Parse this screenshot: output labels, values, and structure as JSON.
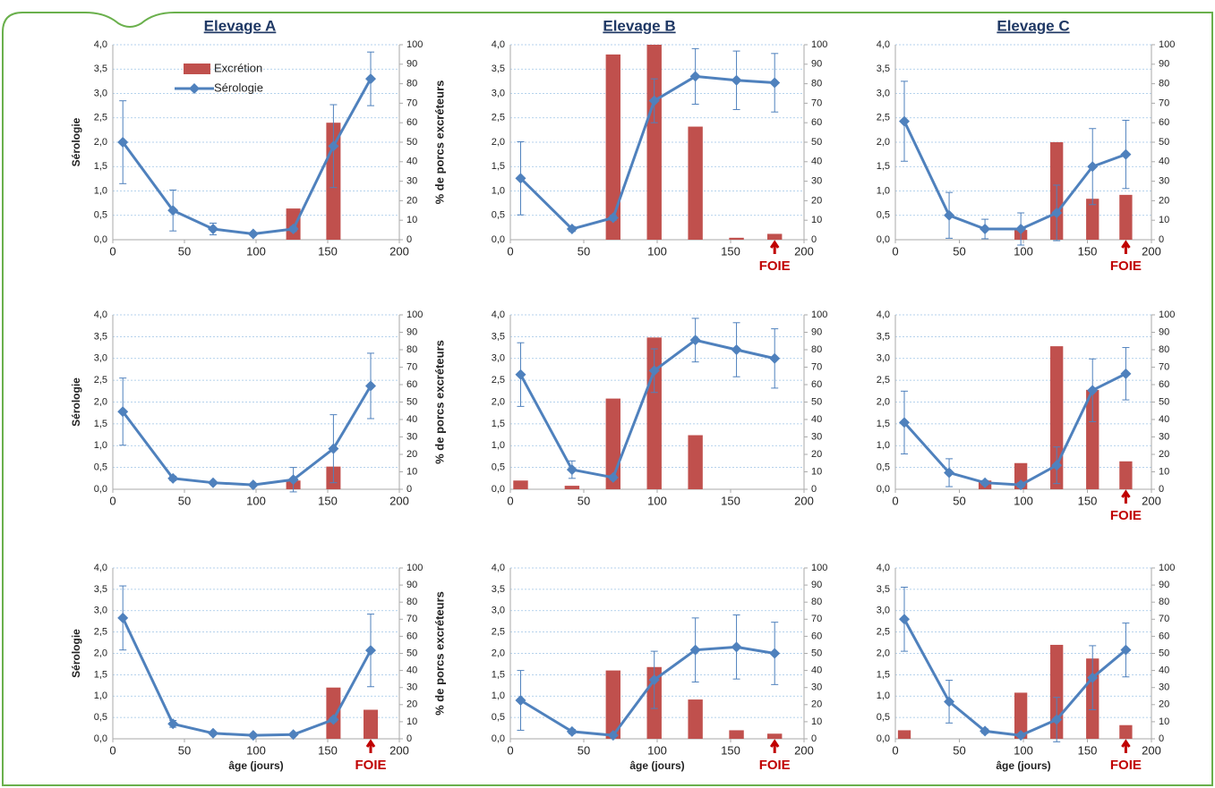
{
  "column_titles": [
    "Elevage A",
    "Elevage B",
    "Elevage C"
  ],
  "chart_data": [
    {
      "type": "combo",
      "x": [
        7,
        42,
        70,
        98,
        126,
        154,
        180
      ],
      "legend": "upper left",
      "series": [
        {
          "name": "Excrétion",
          "type": "bar",
          "axis": "y2",
          "color": "#c0504d",
          "values": [
            null,
            null,
            null,
            null,
            16,
            60,
            null
          ]
        },
        {
          "name": "Sérologie",
          "type": "line",
          "color": "#4f81bd",
          "values": [
            2.0,
            0.6,
            0.22,
            0.12,
            0.22,
            1.92,
            3.3
          ],
          "errors": [
            0.85,
            0.42,
            0.12,
            0.03,
            0.05,
            0.85,
            0.55
          ]
        }
      ],
      "ylabel": "Sérologie",
      "y2label": "% de porcs excréteurs",
      "xlim": [
        0,
        200
      ],
      "xticks": [
        0,
        50,
        100,
        150,
        200
      ],
      "ylim": [
        0,
        4
      ],
      "yticks": [
        {
          "value": 0,
          "label": "0,0"
        },
        {
          "value": 0.5,
          "label": "0,5"
        },
        {
          "value": 1,
          "label": "1,0"
        },
        {
          "value": 1.5,
          "label": "1,5"
        },
        {
          "value": 2,
          "label": "2,0"
        },
        {
          "value": 2.5,
          "label": "2,5"
        },
        {
          "value": 3,
          "label": "3,0"
        },
        {
          "value": 3.5,
          "label": "3,5"
        },
        {
          "value": 4,
          "label": "4,0"
        }
      ],
      "y2lim": [
        0,
        100
      ],
      "y2ticks": [
        0,
        10,
        20,
        30,
        40,
        50,
        60,
        70,
        80,
        90,
        100
      ],
      "grid": true
    },
    {
      "type": "combo",
      "x": [
        7,
        42,
        70,
        98,
        126,
        154,
        180
      ],
      "series": [
        {
          "type": "bar",
          "axis": "y2",
          "color": "#c0504d",
          "values": [
            null,
            null,
            95,
            100,
            58,
            1,
            3
          ]
        },
        {
          "type": "line",
          "color": "#4f81bd",
          "values": [
            1.26,
            0.22,
            0.45,
            2.85,
            3.35,
            3.27,
            3.22
          ],
          "errors": [
            0.75,
            0.05,
            0.05,
            0.45,
            0.57,
            0.6,
            0.6
          ]
        }
      ],
      "annotation": {
        "text": "FOIE",
        "x": 180
      },
      "xlim": [
        0,
        200
      ],
      "xticks": [
        0,
        50,
        100,
        150,
        200
      ],
      "ylim": [
        0,
        4
      ],
      "yticks": [
        {
          "value": 0,
          "label": "0,0"
        },
        {
          "value": 0.5,
          "label": "0,5"
        },
        {
          "value": 1,
          "label": "1,0"
        },
        {
          "value": 1.5,
          "label": "1,5"
        },
        {
          "value": 2,
          "label": "2,0"
        },
        {
          "value": 2.5,
          "label": "2,5"
        },
        {
          "value": 3,
          "label": "3,0"
        },
        {
          "value": 3.5,
          "label": "3,5"
        },
        {
          "value": 4,
          "label": "4,0"
        }
      ],
      "y2lim": [
        0,
        100
      ],
      "y2ticks": [
        0,
        10,
        20,
        30,
        40,
        50,
        60,
        70,
        80,
        90,
        100
      ],
      "grid": true
    },
    {
      "type": "combo",
      "x": [
        7,
        42,
        70,
        98,
        126,
        154,
        180
      ],
      "series": [
        {
          "type": "bar",
          "axis": "y2",
          "color": "#c0504d",
          "values": [
            null,
            null,
            null,
            5,
            50,
            21,
            23
          ]
        },
        {
          "type": "line",
          "color": "#4f81bd",
          "values": [
            2.43,
            0.5,
            0.22,
            0.22,
            0.55,
            1.5,
            1.75
          ],
          "errors": [
            0.82,
            0.47,
            0.2,
            0.33,
            0.57,
            0.78,
            0.7
          ]
        }
      ],
      "annotation": {
        "text": "FOIE",
        "x": 180
      },
      "xlim": [
        0,
        200
      ],
      "xticks": [
        0,
        50,
        100,
        150,
        200
      ],
      "ylim": [
        0,
        4
      ],
      "yticks": [
        {
          "value": 0,
          "label": "0,0"
        },
        {
          "value": 0.5,
          "label": "0,5"
        },
        {
          "value": 1,
          "label": "1,0"
        },
        {
          "value": 1.5,
          "label": "1,5"
        },
        {
          "value": 2,
          "label": "2,0"
        },
        {
          "value": 2.5,
          "label": "2,5"
        },
        {
          "value": 3,
          "label": "3,0"
        },
        {
          "value": 3.5,
          "label": "3,5"
        },
        {
          "value": 4,
          "label": "4,0"
        }
      ],
      "y2lim": [
        0,
        100
      ],
      "y2ticks": [
        0,
        10,
        20,
        30,
        40,
        50,
        60,
        70,
        80,
        90,
        100
      ],
      "grid": true
    },
    {
      "type": "combo",
      "x": [
        7,
        42,
        70,
        98,
        126,
        154,
        180
      ],
      "series": [
        {
          "type": "bar",
          "axis": "y2",
          "color": "#c0504d",
          "values": [
            null,
            null,
            null,
            null,
            5,
            13,
            null
          ]
        },
        {
          "type": "line",
          "color": "#4f81bd",
          "values": [
            1.78,
            0.25,
            0.15,
            0.1,
            0.22,
            0.93,
            2.37
          ],
          "errors": [
            0.77,
            0.05,
            0.03,
            0.02,
            0.28,
            0.78,
            0.75
          ]
        }
      ],
      "ylabel": "Sérologie",
      "y2label": "% de porcs excréteurs",
      "xlim": [
        0,
        200
      ],
      "xticks": [
        0,
        50,
        100,
        150,
        200
      ],
      "ylim": [
        0,
        4
      ],
      "yticks": [
        {
          "value": 0,
          "label": "0,0"
        },
        {
          "value": 0.5,
          "label": "0,5"
        },
        {
          "value": 1,
          "label": "1,0"
        },
        {
          "value": 1.5,
          "label": "1,5"
        },
        {
          "value": 2,
          "label": "2,0"
        },
        {
          "value": 2.5,
          "label": "2,5"
        },
        {
          "value": 3,
          "label": "3,0"
        },
        {
          "value": 3.5,
          "label": "3,5"
        },
        {
          "value": 4,
          "label": "4,0"
        }
      ],
      "y2lim": [
        0,
        100
      ],
      "y2ticks": [
        0,
        10,
        20,
        30,
        40,
        50,
        60,
        70,
        80,
        90,
        100
      ],
      "grid": true
    },
    {
      "type": "combo",
      "x": [
        7,
        42,
        70,
        98,
        126,
        154,
        180
      ],
      "series": [
        {
          "type": "bar",
          "axis": "y2",
          "color": "#c0504d",
          "values": [
            5,
            2,
            52,
            87,
            31,
            null,
            null
          ]
        },
        {
          "type": "line",
          "color": "#4f81bd",
          "values": [
            2.63,
            0.45,
            0.27,
            2.72,
            3.42,
            3.2,
            3.0
          ],
          "errors": [
            0.73,
            0.2,
            0.05,
            0.5,
            0.5,
            0.62,
            0.68
          ]
        }
      ],
      "xlim": [
        0,
        200
      ],
      "xticks": [
        0,
        50,
        100,
        150,
        200
      ],
      "ylim": [
        0,
        4
      ],
      "yticks": [
        {
          "value": 0,
          "label": "0,0"
        },
        {
          "value": 0.5,
          "label": "0,5"
        },
        {
          "value": 1,
          "label": "1,0"
        },
        {
          "value": 1.5,
          "label": "1,5"
        },
        {
          "value": 2,
          "label": "2,0"
        },
        {
          "value": 2.5,
          "label": "2,5"
        },
        {
          "value": 3,
          "label": "3,0"
        },
        {
          "value": 3.5,
          "label": "3,5"
        },
        {
          "value": 4,
          "label": "4,0"
        }
      ],
      "y2lim": [
        0,
        100
      ],
      "y2ticks": [
        0,
        10,
        20,
        30,
        40,
        50,
        60,
        70,
        80,
        90,
        100
      ],
      "grid": true
    },
    {
      "type": "combo",
      "x": [
        7,
        42,
        70,
        98,
        126,
        154,
        180
      ],
      "series": [
        {
          "type": "bar",
          "axis": "y2",
          "color": "#c0504d",
          "values": [
            null,
            null,
            5,
            15,
            82,
            57,
            16
          ]
        },
        {
          "type": "line",
          "color": "#4f81bd",
          "values": [
            1.53,
            0.38,
            0.15,
            0.1,
            0.55,
            2.27,
            2.65
          ],
          "errors": [
            0.72,
            0.32,
            0.05,
            0.05,
            0.42,
            0.72,
            0.6
          ]
        }
      ],
      "annotation": {
        "text": "FOIE",
        "x": 180
      },
      "xlim": [
        0,
        200
      ],
      "xticks": [
        0,
        50,
        100,
        150,
        200
      ],
      "ylim": [
        0,
        4
      ],
      "yticks": [
        {
          "value": 0,
          "label": "0,0"
        },
        {
          "value": 0.5,
          "label": "0,5"
        },
        {
          "value": 1,
          "label": "1,0"
        },
        {
          "value": 1.5,
          "label": "1,5"
        },
        {
          "value": 2,
          "label": "2,0"
        },
        {
          "value": 2.5,
          "label": "2,5"
        },
        {
          "value": 3,
          "label": "3,0"
        },
        {
          "value": 3.5,
          "label": "3,5"
        },
        {
          "value": 4,
          "label": "4,0"
        }
      ],
      "y2lim": [
        0,
        100
      ],
      "y2ticks": [
        0,
        10,
        20,
        30,
        40,
        50,
        60,
        70,
        80,
        90,
        100
      ],
      "grid": true
    },
    {
      "type": "combo",
      "x": [
        7,
        42,
        70,
        98,
        126,
        154,
        180
      ],
      "series": [
        {
          "type": "bar",
          "axis": "y2",
          "color": "#c0504d",
          "values": [
            null,
            null,
            null,
            null,
            null,
            30,
            17
          ]
        },
        {
          "type": "line",
          "color": "#4f81bd",
          "values": [
            2.83,
            0.35,
            0.13,
            0.08,
            0.1,
            0.45,
            2.07
          ],
          "errors": [
            0.75,
            0.08,
            0.03,
            0.02,
            0.02,
            0.05,
            0.85
          ]
        }
      ],
      "ylabel": "Sérologie",
      "y2label": "% de porcs excréteurs",
      "xlabel": "âge (jours)",
      "annotation": {
        "text": "FOIE",
        "x": 180
      },
      "xlim": [
        0,
        200
      ],
      "xticks": [
        0,
        50,
        100,
        150,
        200
      ],
      "ylim": [
        0,
        4
      ],
      "yticks": [
        {
          "value": 0,
          "label": "0,0"
        },
        {
          "value": 0.5,
          "label": "0,5"
        },
        {
          "value": 1,
          "label": "1,0"
        },
        {
          "value": 1.5,
          "label": "1,5"
        },
        {
          "value": 2,
          "label": "2,0"
        },
        {
          "value": 2.5,
          "label": "2,5"
        },
        {
          "value": 3,
          "label": "3,0"
        },
        {
          "value": 3.5,
          "label": "3,5"
        },
        {
          "value": 4,
          "label": "4,0"
        }
      ],
      "y2lim": [
        0,
        100
      ],
      "y2ticks": [
        0,
        10,
        20,
        30,
        40,
        50,
        60,
        70,
        80,
        90,
        100
      ],
      "grid": true
    },
    {
      "type": "combo",
      "x": [
        7,
        42,
        70,
        98,
        126,
        154,
        180
      ],
      "series": [
        {
          "type": "bar",
          "axis": "y2",
          "color": "#c0504d",
          "values": [
            null,
            null,
            40,
            42,
            23,
            5,
            3
          ]
        },
        {
          "type": "line",
          "color": "#4f81bd",
          "values": [
            0.9,
            0.17,
            0.08,
            1.38,
            2.08,
            2.15,
            2.0
          ],
          "errors": [
            0.7,
            0.05,
            0.02,
            0.67,
            0.75,
            0.75,
            0.73
          ]
        }
      ],
      "xlabel": "âge (jours)",
      "annotation": {
        "text": "FOIE",
        "x": 180
      },
      "xlim": [
        0,
        200
      ],
      "xticks": [
        0,
        50,
        100,
        150,
        200
      ],
      "ylim": [
        0,
        4
      ],
      "yticks": [
        {
          "value": 0,
          "label": "0,0"
        },
        {
          "value": 0.5,
          "label": "0,5"
        },
        {
          "value": 1,
          "label": "1,0"
        },
        {
          "value": 1.5,
          "label": "1,5"
        },
        {
          "value": 2,
          "label": "2,0"
        },
        {
          "value": 2.5,
          "label": "2,5"
        },
        {
          "value": 3,
          "label": "3,0"
        },
        {
          "value": 3.5,
          "label": "3,5"
        },
        {
          "value": 4,
          "label": "4,0"
        }
      ],
      "y2lim": [
        0,
        100
      ],
      "y2ticks": [
        0,
        10,
        20,
        30,
        40,
        50,
        60,
        70,
        80,
        90,
        100
      ],
      "grid": true
    },
    {
      "type": "combo",
      "x": [
        7,
        42,
        70,
        98,
        126,
        154,
        180
      ],
      "series": [
        {
          "type": "bar",
          "axis": "y2",
          "color": "#c0504d",
          "values": [
            5,
            null,
            null,
            27,
            55,
            47,
            8
          ]
        },
        {
          "type": "line",
          "color": "#4f81bd",
          "values": [
            2.8,
            0.87,
            0.18,
            0.08,
            0.45,
            1.43,
            2.08
          ],
          "errors": [
            0.75,
            0.5,
            0.05,
            0.03,
            0.52,
            0.75,
            0.63
          ]
        }
      ],
      "xlabel": "âge (jours)",
      "annotation": {
        "text": "FOIE",
        "x": 180
      },
      "xlim": [
        0,
        200
      ],
      "xticks": [
        0,
        50,
        100,
        150,
        200
      ],
      "ylim": [
        0,
        4
      ],
      "yticks": [
        {
          "value": 0,
          "label": "0,0"
        },
        {
          "value": 0.5,
          "label": "0,5"
        },
        {
          "value": 1,
          "label": "1,0"
        },
        {
          "value": 1.5,
          "label": "1,5"
        },
        {
          "value": 2,
          "label": "2,0"
        },
        {
          "value": 2.5,
          "label": "2,5"
        },
        {
          "value": 3,
          "label": "3,0"
        },
        {
          "value": 3.5,
          "label": "3,5"
        },
        {
          "value": 4,
          "label": "4,0"
        }
      ],
      "y2lim": [
        0,
        100
      ],
      "y2ticks": [
        0,
        10,
        20,
        30,
        40,
        50,
        60,
        70,
        80,
        90,
        100
      ],
      "grid": true
    }
  ]
}
